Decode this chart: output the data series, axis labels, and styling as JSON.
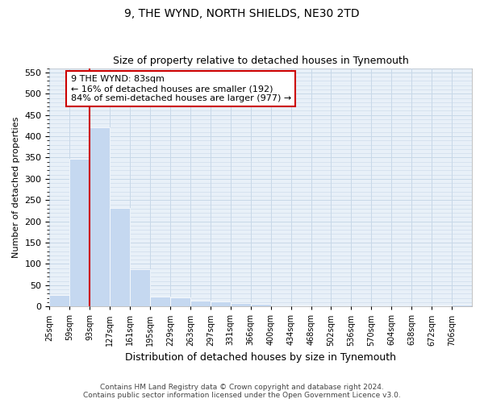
{
  "title": "9, THE WYND, NORTH SHIELDS, NE30 2TD",
  "subtitle": "Size of property relative to detached houses in Tynemouth",
  "xlabel": "Distribution of detached houses by size in Tynemouth",
  "ylabel": "Number of detached properties",
  "footnote": "Contains HM Land Registry data © Crown copyright and database right 2024.\nContains public sector information licensed under the Open Government Licence v3.0.",
  "bar_color": "#c5d8f0",
  "bar_edge_color": "#ffffff",
  "grid_color": "#c8d8e8",
  "background_color": "#e8f0f8",
  "bin_labels": [
    "25sqm",
    "59sqm",
    "93sqm",
    "127sqm",
    "161sqm",
    "195sqm",
    "229sqm",
    "263sqm",
    "297sqm",
    "331sqm",
    "366sqm",
    "400sqm",
    "434sqm",
    "468sqm",
    "502sqm",
    "536sqm",
    "570sqm",
    "604sqm",
    "638sqm",
    "672sqm",
    "706sqm"
  ],
  "bar_heights": [
    27,
    348,
    420,
    232,
    88,
    23,
    22,
    14,
    11,
    9,
    7,
    0,
    3,
    0,
    0,
    0,
    0,
    0,
    0,
    3,
    4
  ],
  "property_bin_index": 2,
  "vline_color": "#cc0000",
  "annotation_text": "9 THE WYND: 83sqm\n← 16% of detached houses are smaller (192)\n84% of semi-detached houses are larger (977) →",
  "annotation_box_color": "#ffffff",
  "annotation_box_edge": "#cc0000",
  "ylim": [
    0,
    560
  ],
  "yticks": [
    0,
    50,
    100,
    150,
    200,
    250,
    300,
    350,
    400,
    450,
    500,
    550
  ],
  "title_fontsize": 10,
  "subtitle_fontsize": 9,
  "ylabel_fontsize": 8,
  "xlabel_fontsize": 9
}
